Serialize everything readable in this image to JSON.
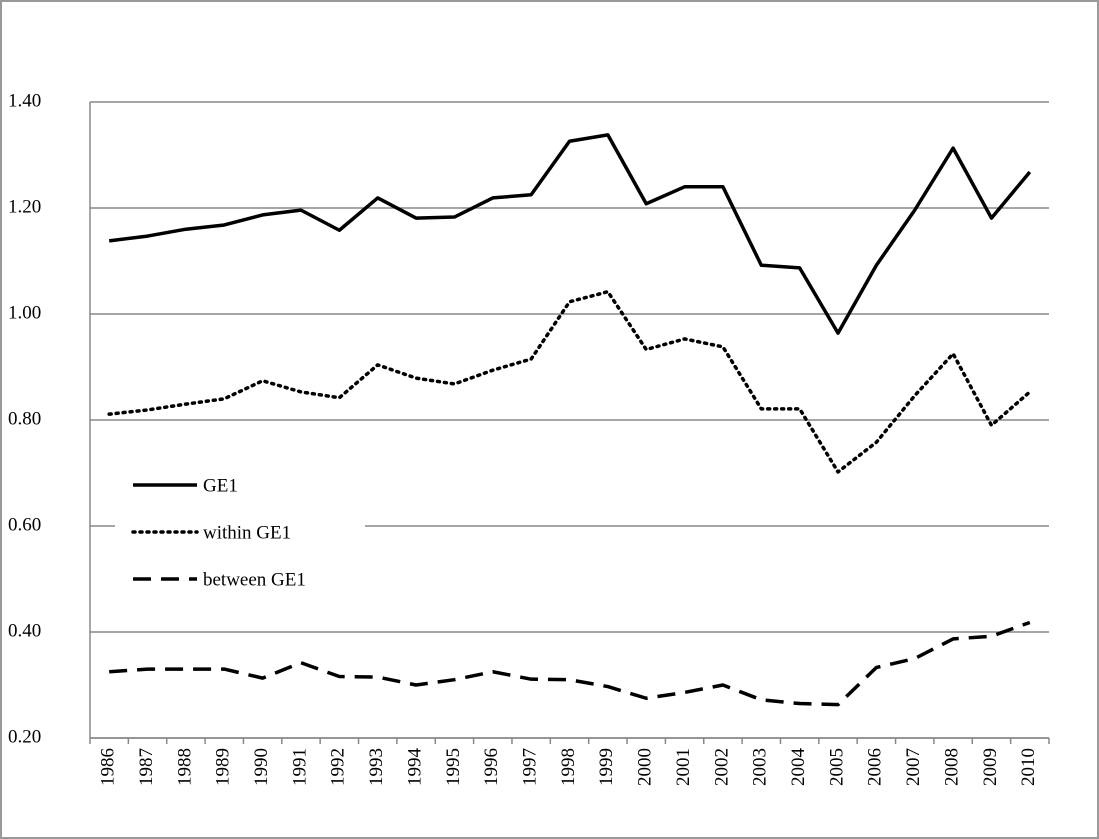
{
  "chart_data": {
    "type": "line",
    "categories": [
      "1986",
      "1987",
      "1988",
      "1989",
      "1990",
      "1991",
      "1992",
      "1993",
      "1994",
      "1995",
      "1996",
      "1997",
      "1998",
      "1999",
      "2000",
      "2001",
      "2002",
      "2003",
      "2004",
      "2005",
      "2006",
      "2007",
      "2008",
      "2009",
      "2010"
    ],
    "series": [
      {
        "name": "GE1",
        "color": "#000000",
        "dash": "solid",
        "values": [
          1.138,
          1.147,
          1.16,
          1.168,
          1.187,
          1.196,
          1.158,
          1.219,
          1.181,
          1.183,
          1.219,
          1.225,
          1.326,
          1.338,
          1.208,
          1.24,
          1.24,
          1.092,
          1.087,
          0.964,
          1.092,
          1.196,
          1.313,
          1.181,
          1.268
        ]
      },
      {
        "name": "within GE1",
        "color": "#000000",
        "dash": "dotted",
        "values": [
          0.811,
          0.819,
          0.83,
          0.84,
          0.874,
          0.853,
          0.842,
          0.904,
          0.879,
          0.868,
          0.894,
          0.915,
          1.023,
          1.042,
          0.933,
          0.953,
          0.938,
          0.821,
          0.821,
          0.702,
          0.758,
          0.846,
          0.925,
          0.79,
          0.853
        ]
      },
      {
        "name": "between GE1",
        "color": "#000000",
        "dash": "dashed",
        "values": [
          0.325,
          0.33,
          0.33,
          0.33,
          0.313,
          0.342,
          0.316,
          0.315,
          0.3,
          0.31,
          0.325,
          0.311,
          0.31,
          0.297,
          0.275,
          0.286,
          0.3,
          0.272,
          0.265,
          0.263,
          0.333,
          0.35,
          0.387,
          0.392,
          0.418
        ]
      }
    ],
    "ylim": [
      0.2,
      1.4
    ],
    "yticks": [
      {
        "value": 0.2,
        "label": "0.20"
      },
      {
        "value": 0.4,
        "label": "0.40"
      },
      {
        "value": 0.6,
        "label": "0.60"
      },
      {
        "value": 0.8,
        "label": "0.80"
      },
      {
        "value": 1.0,
        "label": "1.00"
      },
      {
        "value": 1.2,
        "label": "1.20"
      },
      {
        "value": 1.4,
        "label": "1.40"
      }
    ],
    "grid": true,
    "legend": "left"
  }
}
